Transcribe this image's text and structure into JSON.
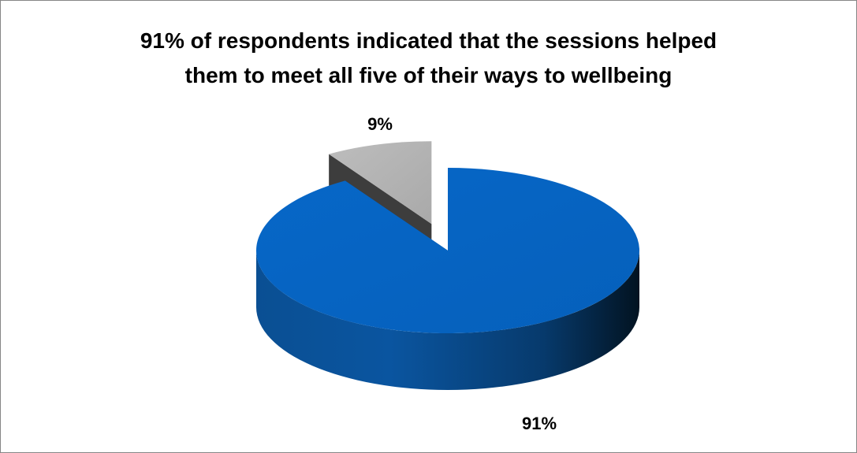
{
  "chart_data": {
    "type": "pie",
    "title": "91% of respondents indicated that the sessions helped them to meet all five of their ways to wellbeing",
    "title_lines": [
      "91% of respondents indicated that the sessions helped",
      "them to meet all five of their ways to wellbeing"
    ],
    "slices": [
      {
        "value": 91,
        "label": "91%",
        "color": "#0563C1"
      },
      {
        "value": 9,
        "label": "9%",
        "color": "#B4B4B4"
      }
    ],
    "legend": "none",
    "exploded_slice": 1,
    "style": "3d"
  }
}
